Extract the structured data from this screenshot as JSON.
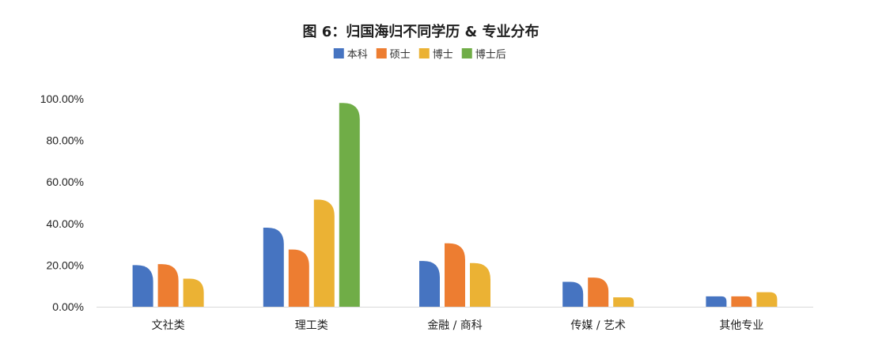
{
  "chart_data": {
    "type": "bar",
    "title": "图 6：归国海归不同学历 & 专业分布",
    "legend_position": "top-center",
    "categories": [
      "文社类",
      "理工类",
      "金融 / 商科",
      "传媒 / 艺术",
      "其他专业"
    ],
    "series": [
      {
        "name": "本科",
        "color": "#4674c1",
        "values": [
          20.0,
          38.0,
          22.0,
          12.0,
          5.0
        ]
      },
      {
        "name": "硕士",
        "color": "#ed7d31",
        "values": [
          20.5,
          27.5,
          30.5,
          14.0,
          5.0
        ]
      },
      {
        "name": "博士",
        "color": "#ebb234",
        "values": [
          13.5,
          51.5,
          21.0,
          4.5,
          7.0
        ]
      },
      {
        "name": "博士后",
        "color": "#70ad47",
        "values": [
          null,
          98.0,
          null,
          null,
          null
        ]
      }
    ],
    "ylim": [
      0,
      100
    ],
    "ytick_labels": [
      "0.00%",
      "20.00%",
      "40.00%",
      "60.00%",
      "80.00%",
      "100.00%"
    ],
    "grid": false,
    "xlabel": "",
    "ylabel": ""
  }
}
